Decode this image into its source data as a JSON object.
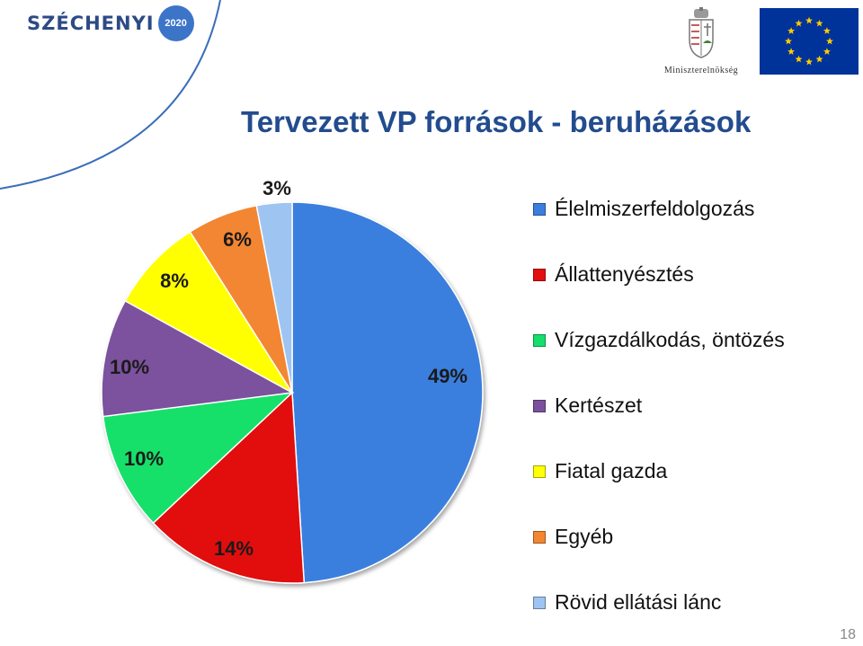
{
  "header": {
    "szechenyi_text": "SZÉCHENYI",
    "szechenyi_badge": "2020",
    "ministry_caption": "Miniszterelnökség"
  },
  "title": "Tervezett VP források - beruházások",
  "colors": {
    "title": "#234c8e",
    "background": "#ffffff",
    "eu_flag": "#003399",
    "eu_stars": "#ffcc00"
  },
  "chart_data": {
    "type": "pie",
    "title": "Tervezett VP források - beruházások",
    "start_angle": "12 o'clock",
    "direction": "clockwise",
    "legend_position": "right",
    "slices": [
      {
        "label": "Élelmiszerfeldolgozás",
        "value": 49,
        "display": "49%",
        "color": "#3a7fde"
      },
      {
        "label": "Állattenyésztés",
        "value": 14,
        "display": "14%",
        "color": "#e21010"
      },
      {
        "label": "Vízgazdálkodás, öntözés",
        "value": 10,
        "display": "10%",
        "color": "#12e06b"
      },
      {
        "label": "Kertészet",
        "value": 10,
        "display": "10%",
        "color": "#7b519d"
      },
      {
        "label": "Fiatal gazda",
        "value": 8,
        "display": "8%",
        "color": "#ffff05"
      },
      {
        "label": "Egyéb",
        "value": 6,
        "display": "6%",
        "color": "#f38631"
      },
      {
        "label": "Rövid ellátási lánc",
        "value": 3,
        "display": "3%",
        "color": "#9ec4f2"
      }
    ]
  },
  "page_number": "18"
}
